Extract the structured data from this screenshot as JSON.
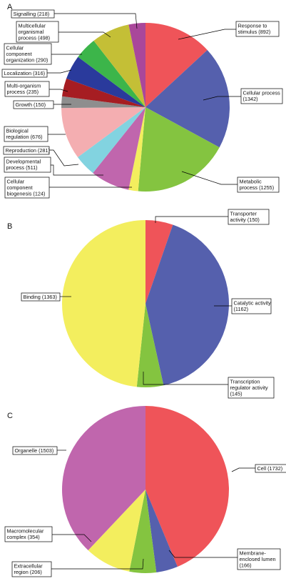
{
  "chart_data": [
    {
      "type": "pie",
      "panel": "A",
      "slices": [
        {
          "label": "Response to stimulus (892)",
          "value": 892,
          "color": "#ef5459"
        },
        {
          "label": "Cellular process (1342)",
          "value": 1342,
          "color": "#5560ad"
        },
        {
          "label": "Metabolic process (1255)",
          "value": 1255,
          "color": "#84c440"
        },
        {
          "label": "Cellular component biogenesis (124)",
          "value": 124,
          "color": "#f3ee5e"
        },
        {
          "label": "Developmental process (511)",
          "value": 511,
          "color": "#c066ad"
        },
        {
          "label": "Reproduction (281)",
          "value": 281,
          "color": "#82d3e0"
        },
        {
          "label": "Biological regulation (676)",
          "value": 676,
          "color": "#f4aeb1"
        },
        {
          "label": "Growth (150)",
          "value": 150,
          "color": "#8e8e8e"
        },
        {
          "label": "Multi-organism process (235)",
          "value": 235,
          "color": "#a61d22"
        },
        {
          "label": "Localization (316)",
          "value": 316,
          "color": "#2a3a9c"
        },
        {
          "label": "Cellular component organization (290)",
          "value": 290,
          "color": "#3cb54a"
        },
        {
          "label": "Multicellular organismal process (498)",
          "value": 498,
          "color": "#c4bf36"
        },
        {
          "label": "Signalling (218)",
          "value": 218,
          "color": "#a9479a"
        }
      ]
    },
    {
      "type": "pie",
      "panel": "B",
      "slices": [
        {
          "label": "Transporter activity (150)",
          "value": 150,
          "color": "#ef5459"
        },
        {
          "label": "Catalytic activity (1162)",
          "value": 1162,
          "color": "#5560ad"
        },
        {
          "label": "Transcription regulator activity (145)",
          "value": 145,
          "color": "#84c440"
        },
        {
          "label": "Binding (1363)",
          "value": 1363,
          "color": "#f3ee5e"
        }
      ]
    },
    {
      "type": "pie",
      "panel": "C",
      "slices": [
        {
          "label": "Cell (1732)",
          "value": 1732,
          "color": "#ef5459"
        },
        {
          "label": "Membrane-enclosed lumen (166)",
          "value": 166,
          "color": "#5560ad"
        },
        {
          "label": "Extracellular region (206)",
          "value": 206,
          "color": "#84c440"
        },
        {
          "label": "Macromolecular complex (354)",
          "value": 354,
          "color": "#f3ee5e"
        },
        {
          "label": "Organelle (1503)",
          "value": 1503,
          "color": "#c066ad"
        }
      ]
    }
  ],
  "labels": {
    "A": [
      {
        "lines": [
          "Response to",
          "stimulus (892)"
        ]
      },
      {
        "lines": [
          "Cellular process",
          "(1342)"
        ]
      },
      {
        "lines": [
          "Metabolic",
          "process (1255)"
        ]
      },
      {
        "lines": [
          "Cellular",
          "component",
          "biogenesis (124)"
        ]
      },
      {
        "lines": [
          "Developmental",
          "process (511)"
        ]
      },
      {
        "lines": [
          "Reproduction (281)"
        ]
      },
      {
        "lines": [
          "Biological",
          "regulation (676)"
        ]
      },
      {
        "lines": [
          "Growth (150)"
        ]
      },
      {
        "lines": [
          "Multi-organism",
          "process (235)"
        ]
      },
      {
        "lines": [
          "Localization (316)"
        ]
      },
      {
        "lines": [
          "Cellular",
          "component",
          "organization (290)"
        ]
      },
      {
        "lines": [
          "Multicellular",
          "organismal",
          "process (498)"
        ]
      },
      {
        "lines": [
          "Signalling (218)"
        ]
      }
    ],
    "B": [
      {
        "lines": [
          "Transporter",
          "activity (150)"
        ]
      },
      {
        "lines": [
          "Catalytic activity",
          "(1162)"
        ]
      },
      {
        "lines": [
          "Transcription",
          "regulator activity",
          "(145)"
        ]
      },
      {
        "lines": [
          "Binding (1363)"
        ]
      }
    ],
    "C": [
      {
        "lines": [
          "Cell (1732)"
        ]
      },
      {
        "lines": [
          "Membrane-",
          "enclosed lumen",
          "(166)"
        ]
      },
      {
        "lines": [
          "Extracellular",
          "region (206)"
        ]
      },
      {
        "lines": [
          "Macromolecular",
          "complex (354)"
        ]
      },
      {
        "lines": [
          "Organelle (1503)"
        ]
      }
    ]
  }
}
